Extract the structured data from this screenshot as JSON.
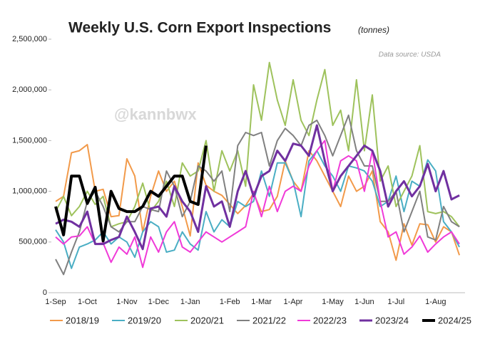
{
  "chart_data": {
    "type": "line",
    "title": "Weekly U.S. Corn Export Inspections",
    "subtitle": "(tonnes)",
    "source": "Data source: USDA",
    "watermark": "@kannbwx",
    "categories": [
      "1-Sep",
      null,
      null,
      null,
      "1-Oct",
      null,
      null,
      null,
      null,
      "1-Nov",
      null,
      null,
      null,
      "1-Dec",
      null,
      null,
      null,
      "1-Jan",
      null,
      null,
      null,
      null,
      "1-Feb",
      null,
      null,
      null,
      "1-Mar",
      null,
      null,
      null,
      "1-Apr",
      null,
      null,
      null,
      null,
      "1-May",
      null,
      null,
      null,
      "1-Jun",
      null,
      null,
      null,
      "1-Jul",
      null,
      null,
      null,
      null,
      "1-Aug",
      null,
      null,
      null
    ],
    "ylim": [
      0,
      2500000
    ],
    "yticks": [
      0,
      {
        "value": 500000,
        "label": "500,000"
      },
      {
        "value": 1000000,
        "label": "1,000,000"
      },
      {
        "value": 1500000,
        "label": "1,500,000"
      },
      {
        "value": 2000000,
        "label": "2,000,000"
      },
      {
        "value": 2500000,
        "label": "2,500,000"
      }
    ],
    "grid": false,
    "legend": "bottom",
    "series": [
      {
        "name": "2018/19",
        "color": "#f29a4a",
        "width": 2,
        "values": [
          900000,
          950000,
          1380000,
          1400000,
          1460000,
          1000000,
          1020000,
          750000,
          760000,
          1320000,
          1150000,
          600000,
          950000,
          1200000,
          1000000,
          1100000,
          850000,
          560000,
          1280000,
          1060000,
          1000000,
          960000,
          870000,
          780000,
          860000,
          980000,
          800000,
          820000,
          950000,
          1300000,
          1100000,
          1000000,
          1400000,
          1300000,
          1150000,
          1000000,
          850000,
          1150000,
          1000000,
          1050000,
          1200000,
          700000,
          600000,
          320000,
          680000,
          470000,
          680000,
          670000,
          500000,
          650000,
          600000,
          370000
        ]
      },
      {
        "name": "2019/20",
        "color": "#4aaec4",
        "width": 2,
        "values": [
          620000,
          500000,
          240000,
          450000,
          480000,
          520000,
          600000,
          480000,
          550000,
          500000,
          350000,
          600000,
          700000,
          650000,
          400000,
          420000,
          600000,
          480000,
          420000,
          800000,
          600000,
          720000,
          650000,
          900000,
          850000,
          900000,
          1200000,
          950000,
          1280000,
          1280000,
          1100000,
          750000,
          1300000,
          1400000,
          1250000,
          1150000,
          1000000,
          1250000,
          1230000,
          1200000,
          1100000,
          850000,
          900000,
          1150000,
          800000,
          1100000,
          1050000,
          1310000,
          1200000,
          700000,
          600000,
          450000
        ]
      },
      {
        "name": "2020/21",
        "color": "#9ec25c",
        "width": 2,
        "values": [
          800000,
          950000,
          760000,
          850000,
          1000000,
          870000,
          950000,
          650000,
          680000,
          700000,
          850000,
          1080000,
          800000,
          900000,
          1100000,
          850000,
          1280000,
          1150000,
          1200000,
          1500000,
          1000000,
          1400000,
          1200000,
          1400000,
          1050000,
          2050000,
          1700000,
          2270000,
          1900000,
          1650000,
          2100000,
          1700000,
          1550000,
          1900000,
          2200000,
          1650000,
          1800000,
          1400000,
          2100000,
          1400000,
          1950000,
          1100000,
          1250000,
          850000,
          1000000,
          1150000,
          1450000,
          800000,
          780000,
          800000,
          750000,
          650000
        ]
      },
      {
        "name": "2021/22",
        "color": "#808080",
        "width": 2,
        "values": [
          330000,
          180000,
          400000,
          600000,
          900000,
          1000000,
          850000,
          650000,
          600000,
          700000,
          700000,
          850000,
          820000,
          800000,
          1200000,
          1050000,
          750000,
          900000,
          1250000,
          1200000,
          1100000,
          1200000,
          800000,
          1450000,
          1580000,
          1550000,
          1580000,
          1250000,
          1500000,
          1620000,
          1550000,
          1450000,
          1650000,
          1700000,
          1550000,
          1350000,
          1550000,
          1750000,
          1400000,
          1250000,
          1250000,
          900000,
          900000,
          1000000,
          600000,
          800000,
          1000000,
          550000,
          520000,
          850000,
          700000,
          650000
        ]
      },
      {
        "name": "2022/23",
        "color": "#f03ad8",
        "width": 2,
        "values": [
          550000,
          480000,
          550000,
          560000,
          650000,
          480000,
          490000,
          300000,
          450000,
          380000,
          550000,
          250000,
          550000,
          400000,
          600000,
          700000,
          450000,
          400000,
          500000,
          600000,
          550000,
          500000,
          550000,
          600000,
          650000,
          1000000,
          750000,
          1050000,
          800000,
          1000000,
          1050000,
          1000000,
          1250000,
          1400000,
          1500000,
          1000000,
          1300000,
          1350000,
          1300000,
          1000000,
          1400000,
          900000,
          550000,
          600000,
          380000,
          450000,
          560000,
          400000,
          480000,
          550000,
          600000,
          480000
        ]
      },
      {
        "name": "2023/24",
        "color": "#7030a0",
        "width": 3,
        "values": [
          680000,
          720000,
          700000,
          650000,
          800000,
          480000,
          480000,
          520000,
          550000,
          750000,
          600000,
          430000,
          830000,
          850000,
          750000,
          1050000,
          900000,
          800000,
          600000,
          1050000,
          850000,
          900000,
          650000,
          1000000,
          1200000,
          950000,
          1150000,
          1200000,
          1400000,
          1300000,
          1470000,
          1450000,
          1350000,
          1650000,
          1300000,
          1000000,
          1150000,
          1250000,
          1350000,
          1450000,
          1400000,
          1200000,
          850000,
          1000000,
          1100000,
          950000,
          1050000,
          1270000,
          1000000,
          1200000,
          920000,
          960000
        ]
      },
      {
        "name": "2024/25",
        "color": "#000000",
        "width": 4,
        "values": [
          850000,
          570000,
          1150000,
          1150000,
          880000,
          1040000,
          510000,
          1000000,
          830000,
          800000,
          800000,
          850000,
          1000000,
          950000,
          1050000,
          1150000,
          1150000,
          900000,
          870000,
          1450000,
          null,
          null,
          null,
          null,
          null,
          null,
          null,
          null,
          null,
          null,
          null,
          null,
          null,
          null,
          null,
          null,
          null,
          null,
          null,
          null,
          null,
          null,
          null,
          null,
          null,
          null,
          null,
          null,
          null,
          null,
          null,
          null
        ]
      }
    ]
  }
}
